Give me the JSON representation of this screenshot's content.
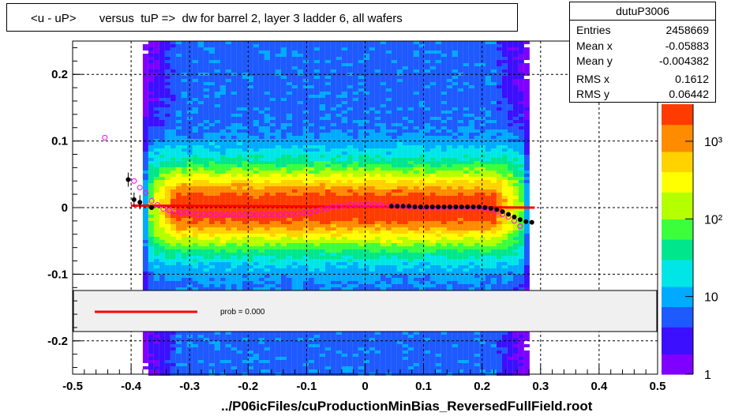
{
  "title": "<u - uP>       versus  tuP =>  dw for barrel 2, layer 3 ladder 6, all wafers",
  "x_axis_title": "../P06icFiles/cuProductionMinBias_ReversedFullField.root",
  "stats": {
    "name": "dutuP3006",
    "rows": [
      {
        "label": "Entries",
        "value": "2458669"
      },
      {
        "label": "Mean x",
        "value": "-0.05883"
      },
      {
        "label": "Mean y",
        "value": "-0.004382"
      },
      {
        "label": "RMS x",
        "value": "0.1612"
      },
      {
        "label": "RMS y",
        "value": "0.06442"
      }
    ]
  },
  "fit_legend": {
    "label": "prob = 0.000",
    "line_color": "#ff0000"
  },
  "colors": {
    "black_markers": "#000000",
    "open_markers": "#ff00ff",
    "fit_line": "#ff0000",
    "palette": [
      "#7f00ff",
      "#3c0fff",
      "#1e5aff",
      "#00aaff",
      "#00e6e6",
      "#00e68c",
      "#3cff3c",
      "#b4ff00",
      "#ffff00",
      "#ffd200",
      "#ff8c00",
      "#ff3c00"
    ]
  },
  "chart_data": {
    "type": "heatmap",
    "xlim": [
      -0.5,
      0.5
    ],
    "ylim": [
      -0.25,
      0.25
    ],
    "x_ticks": [
      -0.5,
      -0.4,
      -0.3,
      -0.2,
      -0.1,
      0,
      0.1,
      0.2,
      0.3,
      0.4,
      0.5
    ],
    "x_tick_labels": [
      "-0.5",
      "-0.4",
      "-0.3",
      "-0.2",
      "-0.1",
      "0",
      "0.1",
      "0.2",
      "0.3",
      "0.4",
      "0.5"
    ],
    "y_ticks": [
      -0.2,
      -0.1,
      0,
      0.1,
      0.2
    ],
    "y_tick_labels": [
      "-0.2",
      "-0.1",
      "0",
      "0.1",
      "0.2"
    ],
    "grid": true,
    "color_scale": {
      "log": true,
      "range": [
        1,
        3000
      ],
      "tick_labels": [
        {
          "value": 1,
          "text": "1"
        },
        {
          "value": 10,
          "text": "10"
        },
        {
          "value": 100,
          "text": "10²"
        },
        {
          "value": 1000,
          "text": "10³"
        }
      ]
    },
    "band_x_range": [
      -0.38,
      0.28
    ],
    "series": [
      {
        "name": "mean",
        "marker": "filled-circle",
        "x": [
          -0.405,
          -0.395,
          -0.385,
          -0.365,
          0.045,
          0.055,
          0.065,
          0.075,
          0.085,
          0.095,
          0.105,
          0.115,
          0.125,
          0.135,
          0.145,
          0.155,
          0.165,
          0.175,
          0.185,
          0.195,
          0.205,
          0.215,
          0.225,
          0.235,
          0.245,
          0.255,
          0.265,
          0.275,
          0.285
        ],
        "y": [
          0.042,
          0.012,
          0.008,
          0.0,
          0.002,
          0.002,
          0.002,
          0.002,
          0.001,
          0.001,
          0.001,
          0.001,
          0.001,
          0.001,
          0.001,
          0.001,
          0.001,
          0.001,
          0.001,
          0.001,
          0.0,
          -0.001,
          -0.003,
          -0.006,
          -0.01,
          -0.014,
          -0.018,
          -0.021,
          -0.022
        ]
      },
      {
        "name": "most probable",
        "marker": "open-circle",
        "x": [
          -0.445,
          -0.395,
          -0.385,
          -0.375,
          -0.365,
          -0.355,
          -0.345,
          -0.335,
          -0.325,
          -0.315,
          -0.305,
          -0.295,
          -0.285,
          -0.275,
          -0.265,
          -0.255,
          -0.245,
          -0.235,
          -0.225,
          -0.215,
          -0.205,
          -0.195,
          -0.185,
          -0.175,
          -0.165,
          -0.155,
          -0.145,
          -0.135,
          -0.125,
          -0.115,
          -0.105,
          -0.095,
          -0.085,
          -0.075,
          -0.065,
          -0.055,
          -0.045,
          -0.035,
          -0.025,
          -0.015,
          -0.005,
          0.005,
          0.015,
          0.025,
          0.035,
          0.045,
          0.055,
          0.065,
          0.075,
          0.085,
          0.095,
          0.105,
          0.115,
          0.125,
          0.135,
          0.145,
          0.155,
          0.165,
          0.175,
          0.185,
          0.195,
          0.205,
          0.215,
          0.225,
          0.235,
          0.245,
          0.255,
          0.265
        ],
        "y": [
          0.105,
          0.04,
          0.03,
          0.022,
          0.01,
          0.004,
          -0.002,
          -0.004,
          -0.006,
          -0.007,
          -0.008,
          -0.009,
          -0.01,
          -0.01,
          -0.01,
          -0.011,
          -0.011,
          -0.011,
          -0.011,
          -0.011,
          -0.011,
          -0.011,
          -0.011,
          -0.011,
          -0.011,
          -0.011,
          -0.011,
          -0.01,
          -0.01,
          -0.009,
          -0.008,
          -0.007,
          -0.005,
          -0.003,
          -0.001,
          0.001,
          0.002,
          0.003,
          0.004,
          0.004,
          0.004,
          0.004,
          0.004,
          0.004,
          0.003,
          0.003,
          0.002,
          0.002,
          0.001,
          0.001,
          0.0,
          0.0,
          0.0,
          0.0,
          0.0,
          0.0,
          0.0,
          0.0,
          0.0,
          0.0,
          0.0,
          -0.001,
          -0.003,
          -0.006,
          -0.01,
          -0.014,
          -0.02,
          -0.028
        ]
      }
    ],
    "fit_line": {
      "x": [
        -0.4,
        0.29
      ],
      "y": [
        0.003,
        0.0
      ]
    }
  }
}
